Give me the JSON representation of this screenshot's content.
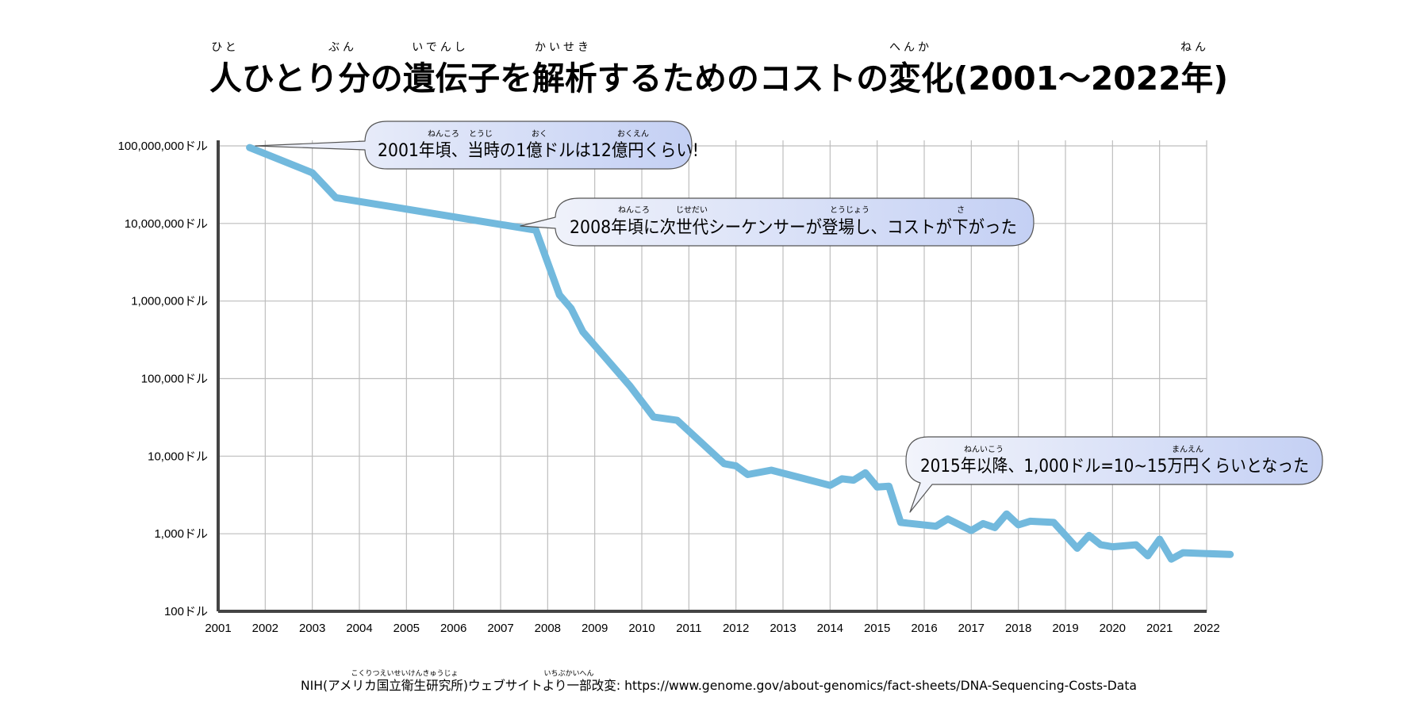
{
  "title": "人ひとり分の遺伝子を解析するためのコストの変化(2001〜2022年)",
  "title_ruby": [
    "ひと",
    "ぶん",
    "いでんし",
    "かいせき",
    "へんか",
    "ねん"
  ],
  "footer": "NIH(アメリカ国立衛生研究所)ウェブサイトより一部改変: https://www.genome.gov/about-genomics/fact-sheets/DNA-Sequencing-Costs-Data",
  "footer_ruby": [
    "こくりつえいせいけんきゅうじょ",
    "いちぶかいへん"
  ],
  "callouts": [
    {
      "text": "2001年頃、当時の1億ドルは12億円くらい!",
      "ruby": [
        "ねんころ",
        "とうじ",
        "おく",
        "おくえん"
      ]
    },
    {
      "text": "2008年頃に次世代シーケンサーが登場し、コストが下がった",
      "ruby": [
        "ねんころ",
        "じせだい",
        "とうじょう",
        "さ"
      ]
    },
    {
      "text": "2015年以降、1,000ドル=10~15万円くらいとなった",
      "ruby": [
        "ねんいこう",
        "まんえん"
      ]
    }
  ],
  "colors": {
    "line": "#72b9dd",
    "grid": "#bdbdbd",
    "axis": "#444444",
    "callout_grad_start": "#f2f4fb",
    "callout_grad_end": "#c4d0f4",
    "callout_border": "#555555"
  },
  "chart_data": {
    "type": "line",
    "y_scale": "log",
    "ylim": [
      100,
      100000000
    ],
    "xlim": [
      2001,
      2022
    ],
    "grid": true,
    "y_ticks": [
      100,
      1000,
      10000,
      100000,
      1000000,
      10000000,
      100000000
    ],
    "y_tick_labels": [
      "100ドル",
      "1,000ドル",
      "10,000ドル",
      "100,000ドル",
      "1,000,000ドル",
      "10,000,000ドル",
      "100,000,000ドル"
    ],
    "x_tick_labels": [
      "2001",
      "2002",
      "2003",
      "2004",
      "2005",
      "2006",
      "2007",
      "2008",
      "2009",
      "2010",
      "2011",
      "2012",
      "2013",
      "2014",
      "2015",
      "2016",
      "2017",
      "2018",
      "2019",
      "2020",
      "2021",
      "2022"
    ],
    "series": [
      {
        "points": [
          [
            "2001-09",
            95263072
          ],
          [
            "2003-01",
            45000000
          ],
          [
            "2003-07",
            21500000
          ],
          [
            "2007-10",
            8200000
          ],
          [
            "2008-04",
            1200000
          ],
          [
            "2008-07",
            800000
          ],
          [
            "2008-10",
            400000
          ],
          [
            "2009-10",
            80000
          ],
          [
            "2010-04",
            32000
          ],
          [
            "2010-10",
            29000
          ],
          [
            "2011-10",
            8000
          ],
          [
            "2012-01",
            7500
          ],
          [
            "2012-04",
            5800
          ],
          [
            "2012-10",
            6600
          ],
          [
            "2013-10",
            4600
          ],
          [
            "2014-01",
            4200
          ],
          [
            "2014-04",
            5100
          ],
          [
            "2014-07",
            4900
          ],
          [
            "2014-10",
            6100
          ],
          [
            "2015-01",
            4000
          ],
          [
            "2015-04",
            4100
          ],
          [
            "2015-07",
            1400
          ],
          [
            "2016-04",
            1250
          ],
          [
            "2016-07",
            1550
          ],
          [
            "2017-01",
            1100
          ],
          [
            "2017-04",
            1350
          ],
          [
            "2017-07",
            1200
          ],
          [
            "2017-10",
            1800
          ],
          [
            "2018-01",
            1300
          ],
          [
            "2018-04",
            1450
          ],
          [
            "2018-10",
            1400
          ],
          [
            "2019-04",
            650
          ],
          [
            "2019-07",
            950
          ],
          [
            "2019-10",
            720
          ],
          [
            "2020-01",
            680
          ],
          [
            "2020-07",
            720
          ],
          [
            "2020-10",
            520
          ],
          [
            "2021-01",
            850
          ],
          [
            "2021-04",
            470
          ],
          [
            "2021-07",
            570
          ],
          [
            "2022-07",
            540
          ]
        ]
      }
    ]
  }
}
